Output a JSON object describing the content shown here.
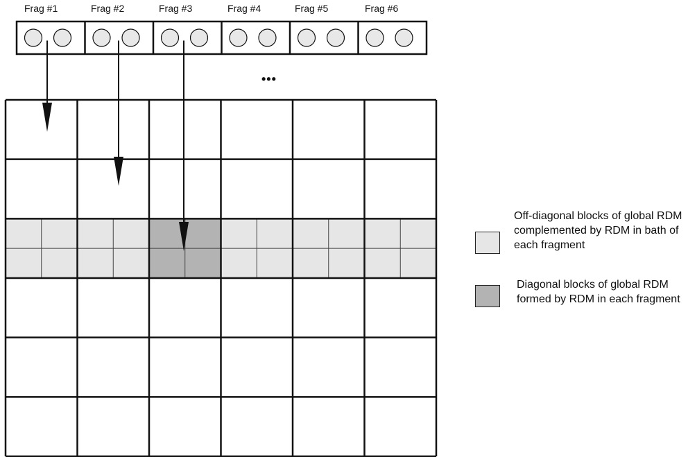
{
  "fragments": [
    "Frag #1",
    "Frag #2",
    "Frag #3",
    "Frag #4",
    "Frag #5",
    "Frag #6"
  ],
  "ellipsis": "•••",
  "legend": {
    "offdiag_text": "Off-diagonal blocks of global RDM complemented by RDM in bath of each fragment",
    "diag_text": "Diagonal blocks of global RDM formed by RDM in each fragment"
  },
  "colors": {
    "offdiag": "#e6e6e6",
    "diag": "#b3b3b3",
    "circle": "#e8e8e8",
    "line": "#111111"
  },
  "matrix": {
    "rows": 6,
    "cols": 6,
    "highlight_row": 3,
    "diagonal_col": 3,
    "subdivided": true
  },
  "arrows": [
    {
      "from_fragment": 1,
      "to_row": 1
    },
    {
      "from_fragment": 2,
      "to_row": 2
    },
    {
      "from_fragment": 3,
      "to_row": 3
    }
  ]
}
